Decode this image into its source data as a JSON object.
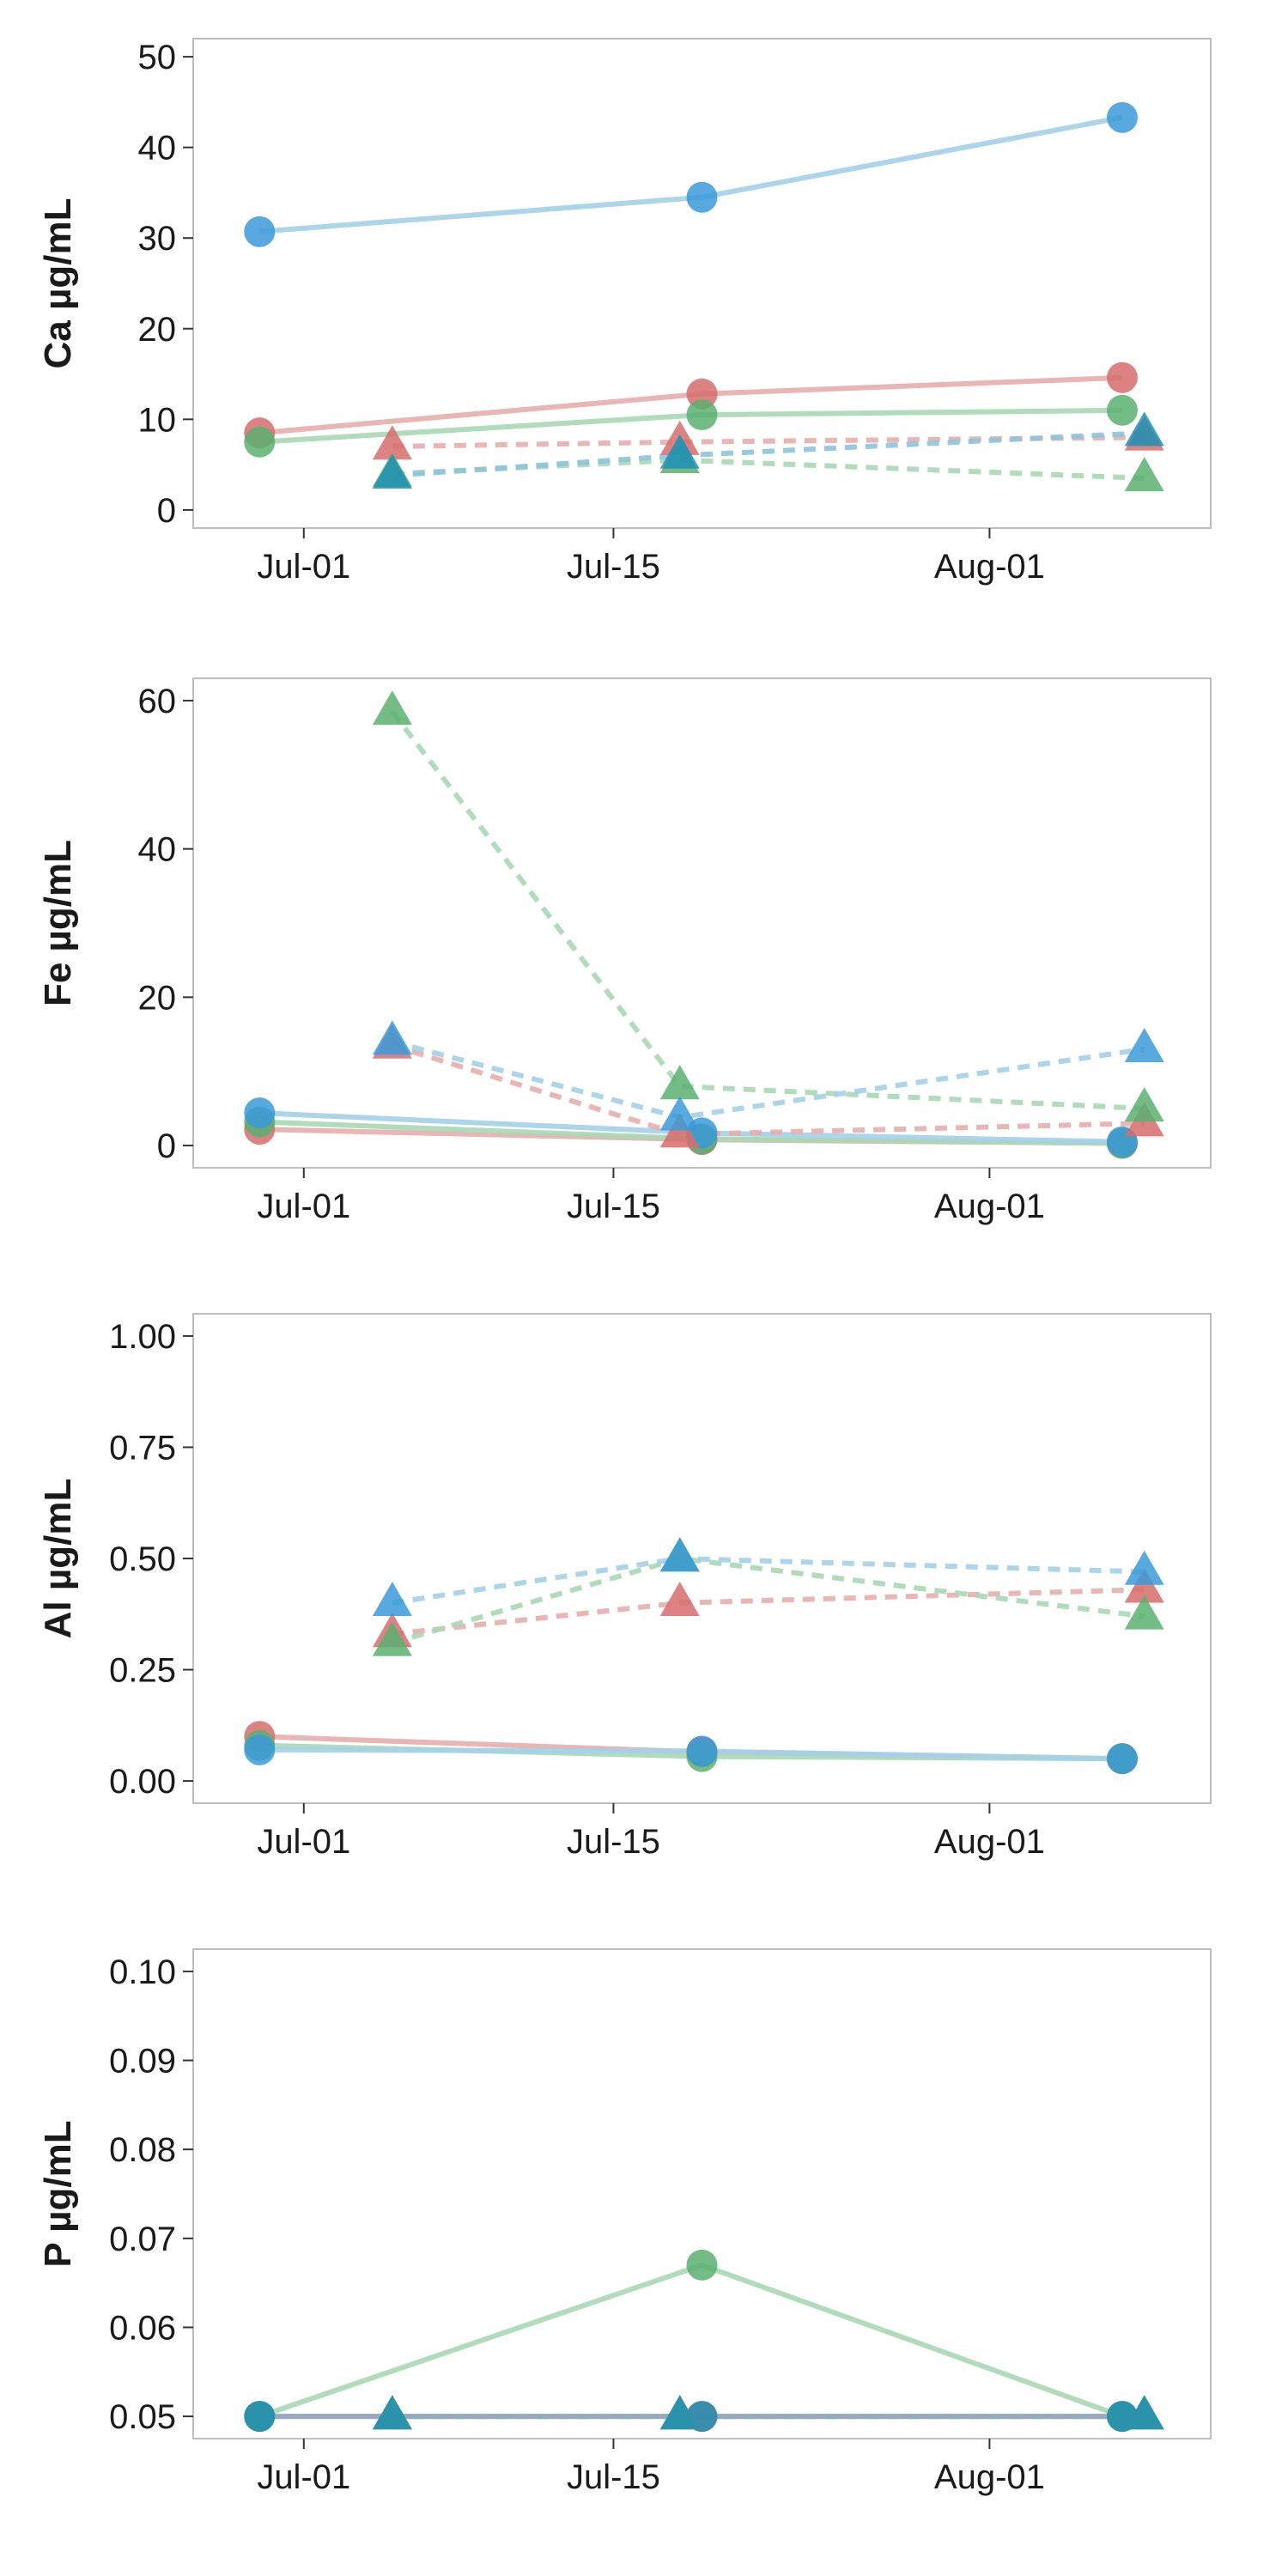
{
  "chart_data": [
    {
      "type": "line",
      "ylabel": "Ca µg/mL",
      "xlabel": "",
      "xlim": [
        "2015-06-26",
        "2015-08-11"
      ],
      "x_ticks": [
        "Jul-01",
        "Jul-15",
        "Aug-01"
      ],
      "x_tick_values": [
        "2015-07-01",
        "2015-07-15",
        "2015-08-01"
      ],
      "ylim": [
        -2,
        52
      ],
      "y_ticks": [
        "0",
        "10",
        "20",
        "30",
        "40",
        "50"
      ],
      "y_tick_values": [
        0,
        10,
        20,
        30,
        40,
        50
      ],
      "series": [
        {
          "color": "#d76c6c",
          "line": "#e8adad",
          "marker": "circle",
          "dash": false,
          "x": [
            "2015-06-29",
            "2015-07-19",
            "2015-08-07"
          ],
          "y": [
            8.5,
            12.8,
            14.6
          ]
        },
        {
          "color": "#5bb071",
          "line": "#a8d8b5",
          "marker": "circle",
          "dash": false,
          "x": [
            "2015-06-29",
            "2015-07-19",
            "2015-08-07"
          ],
          "y": [
            7.5,
            10.5,
            11.0
          ]
        },
        {
          "color": "#3a9ad9",
          "line": "#a3d0ea",
          "marker": "circle",
          "dash": false,
          "x": [
            "2015-06-29",
            "2015-07-19",
            "2015-08-07"
          ],
          "y": [
            30.7,
            34.5,
            43.3
          ]
        },
        {
          "color": "#d76c6c",
          "line": "#e8adad",
          "marker": "triangle",
          "dash": true,
          "x": [
            "2015-07-05",
            "2015-07-18",
            "2015-08-08"
          ],
          "y": [
            7.0,
            7.5,
            8.0
          ]
        },
        {
          "color": "#5bb071",
          "line": "#a8d8b5",
          "marker": "triangle",
          "dash": true,
          "x": [
            "2015-07-05",
            "2015-07-18",
            "2015-08-08"
          ],
          "y": [
            4.0,
            5.5,
            3.5
          ]
        },
        {
          "color": "#1f8fb5",
          "line": "#8cc4dc",
          "marker": "triangle",
          "dash": true,
          "x": [
            "2015-07-05",
            "2015-07-18",
            "2015-08-08"
          ],
          "y": [
            3.8,
            6.0,
            8.5
          ]
        }
      ]
    },
    {
      "type": "line",
      "ylabel": "Fe µg/mL",
      "xlabel": "",
      "xlim": [
        "2015-06-26",
        "2015-08-11"
      ],
      "x_ticks": [
        "Jul-01",
        "Jul-15",
        "Aug-01"
      ],
      "x_tick_values": [
        "2015-07-01",
        "2015-07-15",
        "2015-08-01"
      ],
      "ylim": [
        -3,
        63
      ],
      "y_ticks": [
        "0",
        "20",
        "40",
        "60"
      ],
      "y_tick_values": [
        0,
        20,
        40,
        60
      ],
      "series": [
        {
          "color": "#d76c6c",
          "line": "#e8adad",
          "marker": "circle",
          "dash": false,
          "x": [
            "2015-06-29",
            "2015-07-19",
            "2015-08-07"
          ],
          "y": [
            2.2,
            0.8,
            0.3
          ]
        },
        {
          "color": "#5bb071",
          "line": "#a8d8b5",
          "marker": "circle",
          "dash": false,
          "x": [
            "2015-06-29",
            "2015-07-19",
            "2015-08-07"
          ],
          "y": [
            3.2,
            0.9,
            0.3
          ]
        },
        {
          "color": "#3a9ad9",
          "line": "#a3d0ea",
          "marker": "circle",
          "dash": false,
          "x": [
            "2015-06-29",
            "2015-07-19",
            "2015-08-07"
          ],
          "y": [
            4.4,
            1.7,
            0.5
          ]
        },
        {
          "color": "#d76c6c",
          "line": "#e8adad",
          "marker": "triangle",
          "dash": true,
          "x": [
            "2015-07-05",
            "2015-07-18",
            "2015-08-08"
          ],
          "y": [
            13.5,
            1.5,
            3.0
          ]
        },
        {
          "color": "#5bb071",
          "line": "#a8d8b5",
          "marker": "triangle",
          "dash": true,
          "x": [
            "2015-07-05",
            "2015-07-18",
            "2015-08-08"
          ],
          "y": [
            58.5,
            8.0,
            5.0
          ]
        },
        {
          "color": "#3a9ad9",
          "line": "#a3d0ea",
          "marker": "triangle",
          "dash": true,
          "x": [
            "2015-07-05",
            "2015-07-18",
            "2015-08-08"
          ],
          "y": [
            14.0,
            3.8,
            13.0
          ]
        }
      ]
    },
    {
      "type": "line",
      "ylabel": "Al µg/mL",
      "xlabel": "",
      "xlim": [
        "2015-06-26",
        "2015-08-11"
      ],
      "x_ticks": [
        "Jul-01",
        "Jul-15",
        "Aug-01"
      ],
      "x_tick_values": [
        "2015-07-01",
        "2015-07-15",
        "2015-08-01"
      ],
      "ylim": [
        -0.05,
        1.05
      ],
      "y_ticks": [
        "0.00",
        "0.25",
        "0.50",
        "0.75",
        "1.00"
      ],
      "y_tick_values": [
        0,
        0.25,
        0.5,
        0.75,
        1.0
      ],
      "series": [
        {
          "color": "#d76c6c",
          "line": "#e8adad",
          "marker": "circle",
          "dash": false,
          "x": [
            "2015-06-29",
            "2015-07-19",
            "2015-08-07"
          ],
          "y": [
            0.1,
            0.065,
            0.05
          ]
        },
        {
          "color": "#5bb071",
          "line": "#a8d8b5",
          "marker": "circle",
          "dash": false,
          "x": [
            "2015-06-29",
            "2015-07-19",
            "2015-08-07"
          ],
          "y": [
            0.08,
            0.055,
            0.05
          ]
        },
        {
          "color": "#3a9ad9",
          "line": "#a3d0ea",
          "marker": "circle",
          "dash": false,
          "x": [
            "2015-06-29",
            "2015-07-19",
            "2015-08-07"
          ],
          "y": [
            0.07,
            0.067,
            0.05
          ]
        },
        {
          "color": "#d76c6c",
          "line": "#e8adad",
          "marker": "triangle",
          "dash": true,
          "x": [
            "2015-07-05",
            "2015-07-18",
            "2015-08-08"
          ],
          "y": [
            0.33,
            0.4,
            0.43
          ]
        },
        {
          "color": "#5bb071",
          "line": "#a8d8b5",
          "marker": "triangle",
          "dash": true,
          "x": [
            "2015-07-05",
            "2015-07-18",
            "2015-08-08"
          ],
          "y": [
            0.31,
            0.5,
            0.37
          ]
        },
        {
          "color": "#3a9ad9",
          "line": "#a3d0ea",
          "marker": "triangle",
          "dash": true,
          "x": [
            "2015-07-05",
            "2015-07-18",
            "2015-08-08"
          ],
          "y": [
            0.4,
            0.5,
            0.47
          ]
        }
      ]
    },
    {
      "type": "line",
      "ylabel": "P µg/mL",
      "xlabel": "",
      "xlim": [
        "2015-06-26",
        "2015-08-11"
      ],
      "x_ticks": [
        "Jul-01",
        "Jul-15",
        "Aug-01"
      ],
      "x_tick_values": [
        "2015-07-01",
        "2015-07-15",
        "2015-08-01"
      ],
      "ylim": [
        0.0475,
        0.1025
      ],
      "y_ticks": [
        "0.05",
        "0.06",
        "0.07",
        "0.08",
        "0.09",
        "0.10"
      ],
      "y_tick_values": [
        0.05,
        0.06,
        0.07,
        0.08,
        0.09,
        0.1
      ],
      "series": [
        {
          "color": "#d76c6c",
          "line": "#e8adad",
          "marker": "circle",
          "dash": false,
          "x": [
            "2015-06-29",
            "2015-07-19",
            "2015-08-07"
          ],
          "y": [
            0.05,
            0.05,
            0.05
          ]
        },
        {
          "color": "#5bb071",
          "line": "#a8d8b5",
          "marker": "circle",
          "dash": false,
          "x": [
            "2015-06-29",
            "2015-07-19",
            "2015-08-07"
          ],
          "y": [
            0.05,
            0.067,
            0.05
          ]
        },
        {
          "color": "#1f8fb5",
          "line": "#8ca7c4",
          "marker": "circle",
          "dash": false,
          "x": [
            "2015-06-29",
            "2015-07-19",
            "2015-08-07"
          ],
          "y": [
            0.05,
            0.05,
            0.05
          ]
        },
        {
          "color": "#d76c6c",
          "line": "#e8adad",
          "marker": "triangle",
          "dash": true,
          "x": [
            "2015-07-05",
            "2015-07-18",
            "2015-08-08"
          ],
          "y": [
            0.05,
            0.05,
            0.05
          ]
        },
        {
          "color": "#5bb071",
          "line": "#a8d8b5",
          "marker": "triangle",
          "dash": true,
          "x": [
            "2015-07-05",
            "2015-07-18",
            "2015-08-08"
          ],
          "y": [
            0.05,
            0.05,
            0.05
          ]
        },
        {
          "color": "#1f8fb5",
          "line": "#8ca7c4",
          "marker": "triangle",
          "dash": true,
          "x": [
            "2015-07-05",
            "2015-07-18",
            "2015-08-08"
          ],
          "y": [
            0.05,
            0.05,
            0.05
          ]
        }
      ]
    }
  ]
}
